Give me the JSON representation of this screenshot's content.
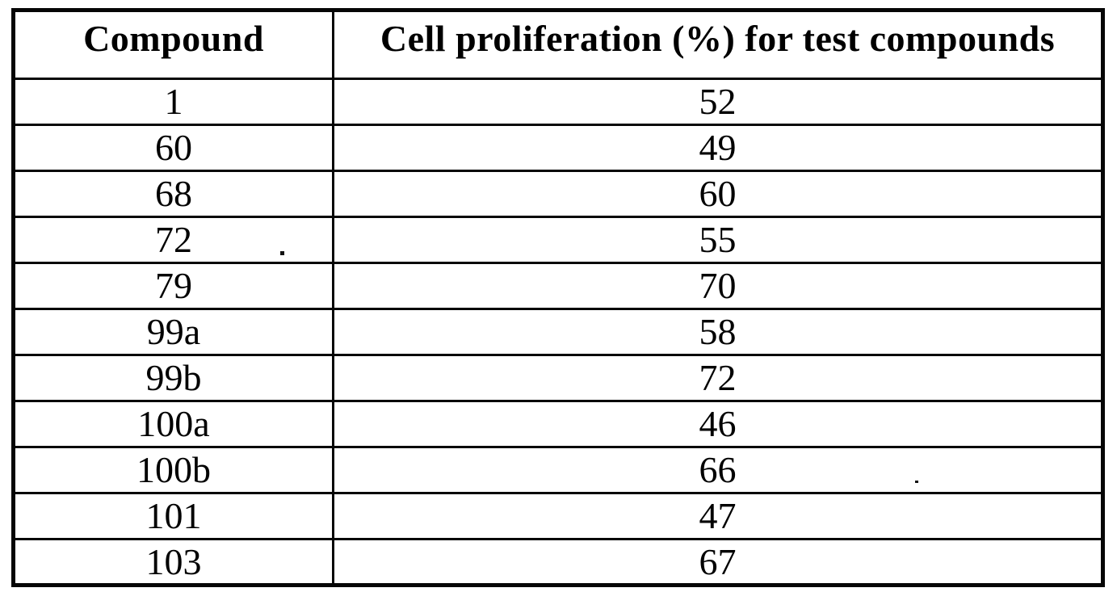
{
  "page": {
    "background": "#ffffff",
    "ink": "#000000"
  },
  "table": {
    "columns": [
      {
        "key": "compound",
        "label": "Compound"
      },
      {
        "key": "value",
        "label": "Cell proliferation (%) for test compounds"
      }
    ],
    "rows": [
      {
        "compound": "1",
        "value": "52"
      },
      {
        "compound": "60",
        "value": "49"
      },
      {
        "compound": "68",
        "value": "60"
      },
      {
        "compound": "72",
        "value": "55"
      },
      {
        "compound": "79",
        "value": "70"
      },
      {
        "compound": "99a",
        "value": "58"
      },
      {
        "compound": "99b",
        "value": "72"
      },
      {
        "compound": "100a",
        "value": "46"
      },
      {
        "compound": "100b",
        "value": "66"
      },
      {
        "compound": "101",
        "value": "47"
      },
      {
        "compound": "103",
        "value": "67"
      }
    ]
  }
}
